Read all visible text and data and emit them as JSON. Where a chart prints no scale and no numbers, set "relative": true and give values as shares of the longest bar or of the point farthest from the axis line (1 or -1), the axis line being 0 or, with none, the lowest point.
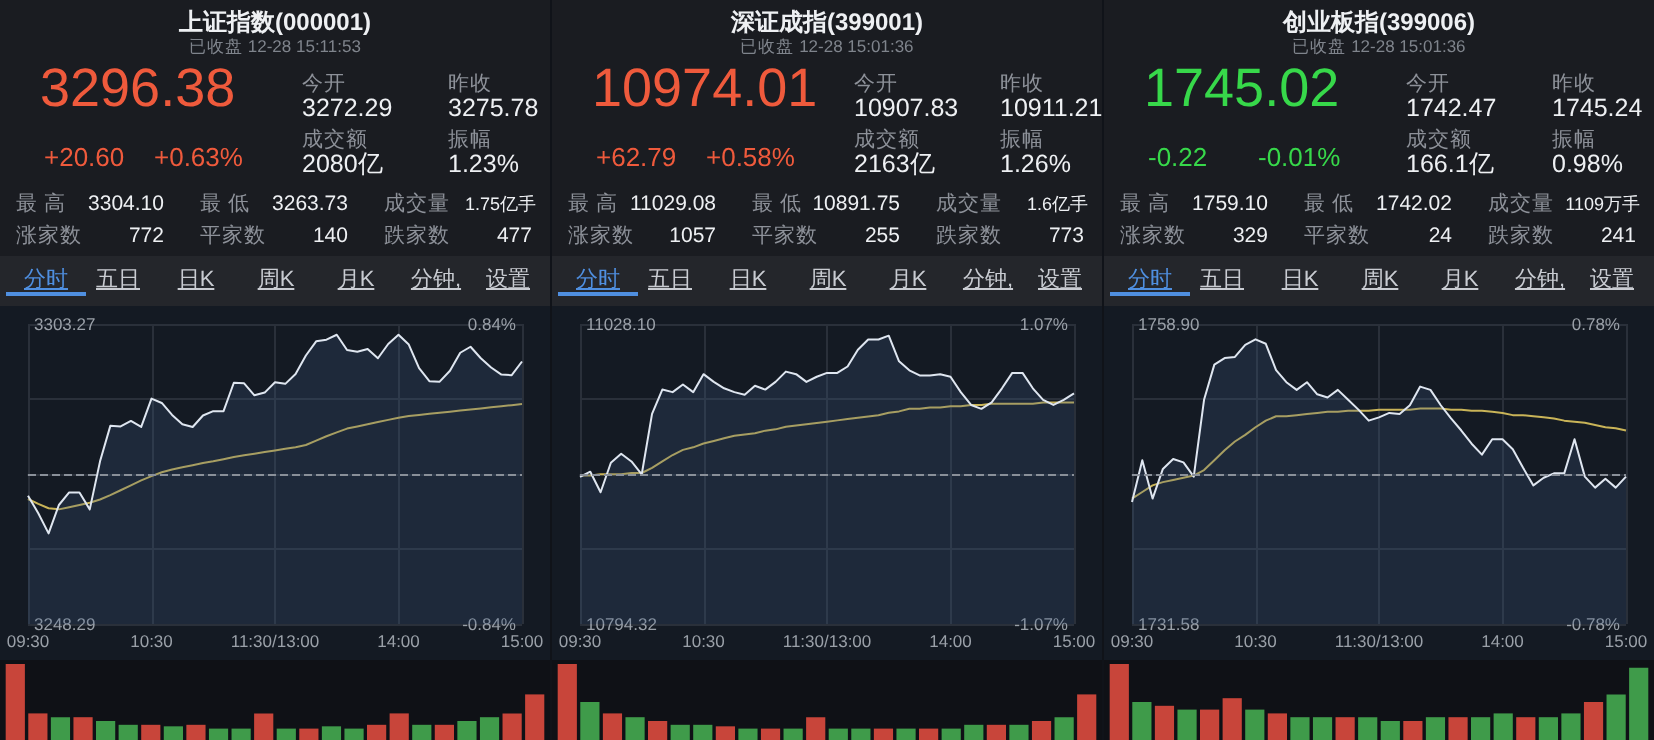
{
  "chart_data": [
    {
      "type": "line",
      "title": "上证指数(000001)",
      "subtitle": "已收盘 12-28 15:11:53",
      "annotations": [
        "3296.38",
        "+20.60",
        "+0.63%",
        "今开",
        "3272.29",
        "昨收",
        "3275.78",
        "成交额",
        "2080亿",
        "振幅",
        "1.23%",
        "最 高",
        "3304.10",
        "最 低",
        "3263.73",
        "成交量",
        "1.75亿手",
        "涨家数",
        "772",
        "平家数",
        "140",
        "跌家数",
        "477",
        "分时",
        "五日",
        "日K",
        "周K",
        "月K",
        "分钟,",
        "设置"
      ],
      "categories": [
        "09:30",
        null,
        null,
        null,
        null,
        null,
        null,
        null,
        null,
        null,
        null,
        null,
        "10:30",
        null,
        null,
        null,
        null,
        null,
        null,
        null,
        null,
        null,
        null,
        null,
        "11:30/13:00",
        null,
        null,
        null,
        null,
        null,
        null,
        null,
        null,
        null,
        null,
        null,
        "14:00",
        null,
        null,
        null,
        null,
        null,
        null,
        null,
        null,
        null,
        null,
        null,
        "15:00"
      ],
      "ylim": [
        3248.29,
        3303.27
      ],
      "yticks": [
        3248.29,
        {
          "value": 3262.04,
          "label": null
        },
        {
          "value": 3289.53,
          "label": null
        },
        3303.27
      ],
      "y2lim": [
        -0.84,
        0.84
      ],
      "y2ticks": [
        {
          "value": -0.84,
          "label": "-0.84%"
        },
        {
          "value": 0.84,
          "label": "0.84%"
        }
      ],
      "grid": true,
      "marker": "none",
      "ref_lines": [
        {
          "axis": "y",
          "value": 3275.78,
          "line_style": "dashed",
          "color": "#8a9099"
        }
      ],
      "series": [
        {
          "type": "area",
          "color": "#dfe6f0",
          "values": [
            3271.8,
            3268.6,
            3264.9,
            3270.1,
            3272.4,
            3272.4,
            3269.3,
            3278.1,
            3284.6,
            3284.5,
            3285.5,
            3284.4,
            3289.6,
            3288.8,
            3286.6,
            3284.9,
            3284.4,
            3286.5,
            3287.3,
            3287.3,
            3292.5,
            3292.4,
            3290.2,
            3290.7,
            3292.6,
            3292.3,
            3294.1,
            3297.5,
            3300.1,
            3300.4,
            3301.3,
            3298.5,
            3298.2,
            3298.7,
            3297.0,
            3299.6,
            3301.3,
            3299.5,
            3295.2,
            3292.8,
            3292.7,
            3294.7,
            3298.0,
            3299.1,
            3297.0,
            3295.3,
            3294.0,
            3293.9,
            3296.4
          ]
        },
        {
          "type": "line",
          "color": "#c9b458",
          "values": [
            3271.2,
            3270.3,
            3269.5,
            3269.3,
            3269.7,
            3270.1,
            3270.5,
            3271.1,
            3271.9,
            3272.8,
            3273.7,
            3274.6,
            3275.4,
            3276.1,
            3276.6,
            3277.0,
            3277.4,
            3277.8,
            3278.1,
            3278.5,
            3278.9,
            3279.2,
            3279.5,
            3279.8,
            3280.1,
            3280.4,
            3280.7,
            3281.1,
            3281.9,
            3282.7,
            3283.4,
            3284.1,
            3284.5,
            3284.9,
            3285.3,
            3285.7,
            3286.1,
            3286.4,
            3286.6,
            3286.8,
            3287.0,
            3287.2,
            3287.4,
            3287.6,
            3287.8,
            3288.0,
            3288.2,
            3288.4,
            3288.6
          ]
        }
      ]
    },
    {
      "type": "line",
      "title": "深证成指(399001)",
      "subtitle": "已收盘 12-28 15:01:36",
      "annotations": [
        "10974.01",
        "+62.79",
        "+0.58%",
        "今开",
        "10907.83",
        "昨收",
        "10911.21",
        "成交额",
        "2163亿",
        "振幅",
        "1.26%",
        "最 高",
        "11029.08",
        "最 低",
        "10891.75",
        "成交量",
        "1.6亿手",
        "涨家数",
        "1057",
        "平家数",
        "255",
        "跌家数",
        "773",
        "分时",
        "五日",
        "日K",
        "周K",
        "月K",
        "分钟,",
        "设置"
      ],
      "categories": [
        "09:30",
        null,
        null,
        null,
        null,
        null,
        null,
        null,
        null,
        null,
        null,
        null,
        "10:30",
        null,
        null,
        null,
        null,
        null,
        null,
        null,
        null,
        null,
        null,
        null,
        "11:30/13:00",
        null,
        null,
        null,
        null,
        null,
        null,
        null,
        null,
        null,
        null,
        null,
        "14:00",
        null,
        null,
        null,
        null,
        null,
        null,
        null,
        null,
        null,
        null,
        null,
        "15:00"
      ],
      "ylim": [
        10794.32,
        11028.1
      ],
      "yticks": [
        10794.32,
        {
          "value": 10852.77,
          "label": null
        },
        {
          "value": 10969.66,
          "label": null
        },
        {
          "value": 11028.1,
          "label": "11028.10"
        }
      ],
      "y2lim": [
        -1.07,
        1.07
      ],
      "y2ticks": [
        {
          "value": -1.07,
          "label": "-1.07%"
        },
        {
          "value": 1.07,
          "label": "1.07%"
        }
      ],
      "grid": true,
      "marker": "none",
      "ref_lines": [
        {
          "axis": "y",
          "value": 10911.21,
          "line_style": "dashed",
          "color": "#8a9099"
        }
      ],
      "series": [
        {
          "type": "area",
          "color": "#dfe6f0",
          "values": [
            10909,
            10913,
            10897,
            10920,
            10927,
            10921,
            10911,
            10958,
            10977,
            10975,
            10981,
            10975,
            10989,
            10983,
            10978,
            10975,
            10973,
            10980,
            10977,
            10983,
            10991,
            10989,
            10983,
            10987,
            10990,
            10990,
            10995,
            11008,
            11016,
            11016,
            11019,
            10999,
            10992,
            10988,
            10988,
            10989,
            10987,
            10975,
            10965,
            10962,
            10967,
            10978,
            10990,
            10990,
            10978,
            10969,
            10965,
            10969,
            10974
          ]
        },
        {
          "type": "line",
          "color": "#c9b458",
          "values": [
            10910,
            10910,
            10911,
            10911,
            10911,
            10912,
            10912,
            10916,
            10921,
            10926,
            10930,
            10932,
            10935,
            10937,
            10939,
            10941,
            10942,
            10943,
            10945,
            10946,
            10948,
            10949,
            10950,
            10951,
            10952,
            10953,
            10954,
            10955,
            10956,
            10957,
            10959,
            10960,
            10962,
            10962,
            10963,
            10963,
            10964,
            10964,
            10965,
            10965,
            10966,
            10966,
            10966,
            10966,
            10966,
            10967,
            10967,
            10967,
            10967
          ]
        }
      ]
    },
    {
      "type": "line",
      "title": "创业板指(399006)",
      "subtitle": "已收盘 12-28 15:01:36",
      "annotations": [
        "1745.02",
        "-0.22",
        "-0.01%",
        "今开",
        "1742.47",
        "昨收",
        "1745.24",
        "成交额",
        "166.1亿",
        "振幅",
        "0.98%",
        "最 高",
        "1759.10",
        "最 低",
        "1742.02",
        "成交量",
        "1109万手",
        "涨家数",
        "329",
        "平家数",
        "24",
        "跌家数",
        "241",
        "分时",
        "五日",
        "日K",
        "周K",
        "月K",
        "分钟,",
        "设置"
      ],
      "categories": [
        "09:30",
        null,
        null,
        null,
        null,
        null,
        null,
        null,
        null,
        null,
        null,
        null,
        "10:30",
        null,
        null,
        null,
        null,
        null,
        null,
        null,
        null,
        null,
        null,
        null,
        "11:30/13:00",
        null,
        null,
        null,
        null,
        null,
        null,
        null,
        null,
        null,
        null,
        null,
        "14:00",
        null,
        null,
        null,
        null,
        null,
        null,
        null,
        null,
        null,
        null,
        null,
        "15:00"
      ],
      "ylim": [
        1731.58,
        1758.9
      ],
      "yticks": [
        1731.58,
        {
          "value": 1738.41,
          "label": null
        },
        {
          "value": 1752.07,
          "label": null
        },
        {
          "value": 1758.9,
          "label": "1758.90"
        }
      ],
      "y2lim": [
        -0.78,
        0.78
      ],
      "y2ticks": [
        {
          "value": -0.78,
          "label": "-0.78%"
        },
        {
          "value": 0.78,
          "label": "0.78%"
        }
      ],
      "grid": true,
      "marker": "none",
      "ref_lines": [
        {
          "axis": "y",
          "value": 1745.24,
          "line_style": "dashed",
          "color": "#8a9099"
        }
      ],
      "series": [
        {
          "type": "area",
          "color": "#dfe6f0",
          "values": [
            1742.7,
            1746.5,
            1743.0,
            1745.7,
            1746.6,
            1746.3,
            1745.0,
            1752.0,
            1755.2,
            1755.8,
            1755.9,
            1757.0,
            1757.5,
            1757.1,
            1754.7,
            1753.6,
            1752.9,
            1753.6,
            1752.5,
            1752.2,
            1752.9,
            1752.0,
            1751.1,
            1750.1,
            1750.4,
            1750.8,
            1750.7,
            1751.5,
            1753.2,
            1752.9,
            1751.5,
            1750.3,
            1749.2,
            1748.0,
            1747.0,
            1748.4,
            1748.4,
            1747.5,
            1745.8,
            1744.2,
            1744.9,
            1745.3,
            1745.3,
            1748.4,
            1745.0,
            1744.0,
            1744.8,
            1744.0,
            1745.0
          ]
        },
        {
          "type": "line",
          "color": "#c9b458",
          "values": [
            1743.0,
            1743.6,
            1744.2,
            1744.5,
            1744.7,
            1744.9,
            1745.1,
            1745.6,
            1746.5,
            1747.4,
            1748.2,
            1748.8,
            1749.5,
            1750.1,
            1750.5,
            1750.5,
            1750.6,
            1750.7,
            1750.8,
            1750.9,
            1750.9,
            1751.0,
            1751.0,
            1751.0,
            1751.1,
            1751.1,
            1751.1,
            1751.1,
            1751.2,
            1751.2,
            1751.2,
            1751.1,
            1751.1,
            1751.0,
            1751.0,
            1750.9,
            1750.8,
            1750.6,
            1750.6,
            1750.5,
            1750.4,
            1750.3,
            1750.1,
            1750.0,
            1749.9,
            1749.7,
            1749.5,
            1749.4,
            1749.2
          ]
        }
      ]
    },
    {
      "type": "bar",
      "relative": true,
      "categories": [
        null,
        null,
        null,
        null,
        null,
        null,
        null,
        null,
        null,
        null,
        null,
        null,
        null,
        null,
        null,
        null,
        null,
        null,
        null,
        null,
        null,
        null,
        null,
        null
      ],
      "values": [
        1,
        0.35,
        0.3,
        0.3,
        0.25,
        0.2,
        0.2,
        0.18,
        0.2,
        0.15,
        0.15,
        0.35,
        0.15,
        0.15,
        0.18,
        0.15,
        0.2,
        0.35,
        0.2,
        0.2,
        0.25,
        0.3,
        0.35,
        0.6
      ],
      "colors": [
        "#c8453a",
        "#c8453a",
        "#3f9b4a",
        "#c8453a",
        "#3f9b4a",
        "#3f9b4a",
        "#c8453a",
        "#3f9b4a",
        "#c8453a",
        "#3f9b4a",
        "#3f9b4a",
        "#c8453a",
        "#3f9b4a",
        "#c8453a",
        "#3f9b4a",
        "#3f9b4a",
        "#c8453a",
        "#c8453a",
        "#3f9b4a",
        "#c8453a",
        "#3f9b4a",
        "#3f9b4a",
        "#c8453a",
        "#c8453a"
      ]
    },
    {
      "type": "bar",
      "relative": true,
      "categories": [
        null,
        null,
        null,
        null,
        null,
        null,
        null,
        null,
        null,
        null,
        null,
        null,
        null,
        null,
        null,
        null,
        null,
        null,
        null,
        null,
        null,
        null,
        null,
        null
      ],
      "values": [
        1,
        0.5,
        0.35,
        0.3,
        0.25,
        0.2,
        0.2,
        0.18,
        0.15,
        0.15,
        0.15,
        0.3,
        0.15,
        0.15,
        0.15,
        0.15,
        0.15,
        0.15,
        0.2,
        0.2,
        0.2,
        0.25,
        0.3,
        0.6
      ],
      "colors": [
        "#c8453a",
        "#3f9b4a",
        "#c8453a",
        "#3f9b4a",
        "#c8453a",
        "#3f9b4a",
        "#3f9b4a",
        "#c8453a",
        "#3f9b4a",
        "#c8453a",
        "#3f9b4a",
        "#c8453a",
        "#3f9b4a",
        "#3f9b4a",
        "#c8453a",
        "#3f9b4a",
        "#c8453a",
        "#3f9b4a",
        "#3f9b4a",
        "#c8453a",
        "#3f9b4a",
        "#c8453a",
        "#3f9b4a",
        "#c8453a"
      ]
    },
    {
      "type": "bar",
      "relative": true,
      "categories": [
        null,
        null,
        null,
        null,
        null,
        null,
        null,
        null,
        null,
        null,
        null,
        null,
        null,
        null,
        null,
        null,
        null,
        null,
        null,
        null,
        null,
        null,
        null,
        null
      ],
      "values": [
        1,
        0.5,
        0.45,
        0.4,
        0.4,
        0.55,
        0.4,
        0.35,
        0.3,
        0.3,
        0.3,
        0.3,
        0.25,
        0.25,
        0.3,
        0.3,
        0.3,
        0.35,
        0.3,
        0.3,
        0.35,
        0.5,
        0.6,
        0.95
      ],
      "colors": [
        "#c8453a",
        "#3f9b4a",
        "#c8453a",
        "#3f9b4a",
        "#c8453a",
        "#c8453a",
        "#3f9b4a",
        "#c8453a",
        "#3f9b4a",
        "#3f9b4a",
        "#c8453a",
        "#3f9b4a",
        "#3f9b4a",
        "#c8453a",
        "#3f9b4a",
        "#c8453a",
        "#3f9b4a",
        "#3f9b4a",
        "#c8453a",
        "#3f9b4a",
        "#3f9b4a",
        "#c8453a",
        "#3f9b4a",
        "#3f9b4a"
      ]
    }
  ]
}
